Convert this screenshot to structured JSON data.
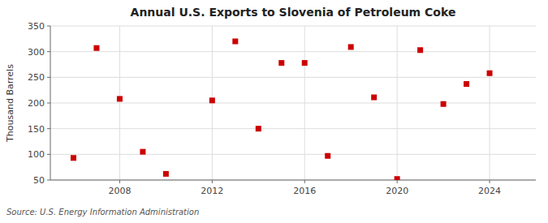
{
  "chart_data": {
    "type": "scatter",
    "title": "Annual U.S. Exports to Slovenia of Petroleum Coke",
    "ylabel": "Thousand Barrels",
    "source": "Source: U.S. Energy Information Administration",
    "x": [
      2006,
      2007,
      2008,
      2009,
      2010,
      2012,
      2013,
      2014,
      2015,
      2016,
      2017,
      2018,
      2019,
      2020,
      2021,
      2022,
      2023,
      2024
    ],
    "values": [
      93,
      307,
      208,
      105,
      62,
      205,
      320,
      150,
      278,
      278,
      97,
      309,
      211,
      52,
      303,
      198,
      237,
      258
    ],
    "xlim": [
      2005,
      2026
    ],
    "xticks": [
      2008,
      2012,
      2016,
      2020,
      2024
    ],
    "ylim": [
      50,
      350
    ],
    "yticks": [
      50,
      100,
      150,
      200,
      250,
      300,
      350
    ],
    "color": "#cc0000",
    "marker": "square",
    "grid": true
  }
}
